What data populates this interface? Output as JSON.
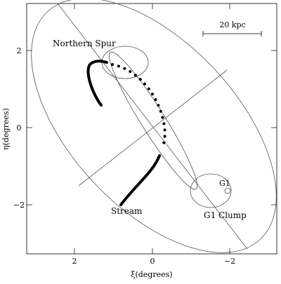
{
  "chart_data": {
    "type": "diagram",
    "xlabel": "ξ(degrees)",
    "ylabel": "η(degrees)",
    "x_ticks": [
      "2",
      "0",
      "−2"
    ],
    "y_ticks": [
      "2",
      "0",
      "−2"
    ],
    "annotations": {
      "northern_spur": "Northern Spur",
      "stream": "Stream",
      "g1": "G1",
      "g1_clump": "G1 Clump",
      "scale_bar": "20 kpc"
    },
    "colors": {
      "ink": "#000000",
      "thin": "#555555"
    }
  }
}
